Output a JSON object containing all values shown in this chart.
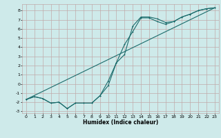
{
  "xlabel": "Humidex (Indice chaleur)",
  "ylabel": "",
  "bg_color": "#ceeaea",
  "grid_color": "#c0aaaa",
  "line_color": "#1a6b6b",
  "xlim": [
    -0.5,
    23.5
  ],
  "ylim": [
    -3.2,
    8.7
  ],
  "xticks": [
    0,
    1,
    2,
    3,
    4,
    5,
    6,
    7,
    8,
    9,
    10,
    11,
    12,
    13,
    14,
    15,
    16,
    17,
    18,
    19,
    20,
    21,
    22,
    23
  ],
  "yticks": [
    -3,
    -2,
    -1,
    0,
    1,
    2,
    3,
    4,
    5,
    6,
    7,
    8
  ],
  "line1_x": [
    0,
    1,
    2,
    3,
    4,
    5,
    6,
    7,
    8,
    9,
    10,
    11,
    12,
    13,
    14,
    15,
    16,
    17,
    18,
    19,
    20,
    21,
    22,
    23
  ],
  "line1_y": [
    -1.7,
    -1.4,
    -1.6,
    -2.1,
    -2.0,
    -2.7,
    -2.1,
    -2.1,
    -2.1,
    -1.3,
    -0.2,
    2.3,
    4.3,
    5.7,
    7.2,
    7.2,
    6.8,
    6.5,
    6.8,
    7.3,
    7.6,
    8.0,
    8.2,
    8.3
  ],
  "line2_x": [
    0,
    1,
    2,
    3,
    4,
    5,
    6,
    7,
    8,
    9,
    10,
    11,
    12,
    13,
    14,
    15,
    16,
    17,
    18,
    19,
    20,
    21,
    22,
    23
  ],
  "line2_y": [
    -1.7,
    -1.4,
    -1.6,
    -2.1,
    -2.0,
    -2.7,
    -2.1,
    -2.1,
    -2.1,
    -1.3,
    0.3,
    2.3,
    3.2,
    6.3,
    7.3,
    7.3,
    7.1,
    6.7,
    6.8,
    7.3,
    7.6,
    8.0,
    8.2,
    8.3
  ],
  "line3_x": [
    0,
    23
  ],
  "line3_y": [
    -1.7,
    8.3
  ]
}
